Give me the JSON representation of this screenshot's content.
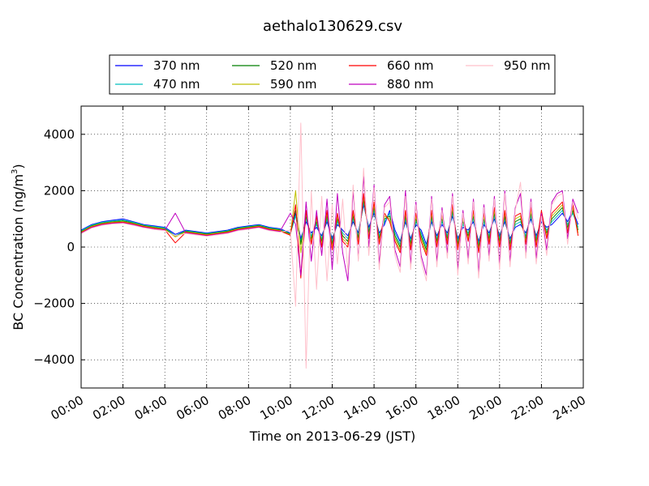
{
  "chart_data": {
    "type": "line",
    "title": "aethalo130629.csv",
    "xlabel": "Time on 2013-06-29 (JST)",
    "ylabel": "BC Concentration (ng/m",
    "ylabel_sup": "3",
    "ylabel_close": ")",
    "xlim": [
      "00:00",
      "24:00"
    ],
    "ylim": [
      -5000,
      5000
    ],
    "x_ticks": [
      "00:00",
      "02:00",
      "04:00",
      "06:00",
      "08:00",
      "10:00",
      "12:00",
      "14:00",
      "16:00",
      "18:00",
      "20:00",
      "22:00",
      "24:00"
    ],
    "y_ticks": [
      -4000,
      -2000,
      0,
      2000,
      4000
    ],
    "grid": true,
    "legend_position": "top",
    "x": [
      "00:00",
      "00:30",
      "01:00",
      "01:30",
      "02:00",
      "02:30",
      "03:00",
      "03:30",
      "04:00",
      "04:30",
      "05:00",
      "05:30",
      "06:00",
      "06:30",
      "07:00",
      "07:30",
      "08:00",
      "08:30",
      "09:00",
      "09:30",
      "10:00",
      "10:15",
      "10:30",
      "10:45",
      "11:00",
      "11:15",
      "11:30",
      "11:45",
      "12:00",
      "12:15",
      "12:30",
      "12:45",
      "13:00",
      "13:15",
      "13:30",
      "13:45",
      "14:00",
      "14:15",
      "14:30",
      "14:45",
      "15:00",
      "15:15",
      "15:30",
      "15:45",
      "16:00",
      "16:15",
      "16:30",
      "16:45",
      "17:00",
      "17:15",
      "17:30",
      "17:45",
      "18:00",
      "18:15",
      "18:30",
      "18:45",
      "19:00",
      "19:15",
      "19:30",
      "19:45",
      "20:00",
      "20:15",
      "20:30",
      "20:45",
      "21:00",
      "21:15",
      "21:30",
      "21:45",
      "22:00",
      "22:15",
      "22:30",
      "22:45",
      "23:00",
      "23:15",
      "23:30",
      "23:45"
    ],
    "series": [
      {
        "name": "370 nm",
        "color": "#0000ff",
        "values": [
          600,
          800,
          900,
          950,
          1000,
          900,
          800,
          750,
          700,
          450,
          600,
          550,
          500,
          550,
          600,
          700,
          750,
          800,
          700,
          650,
          500,
          1200,
          300,
          900,
          500,
          700,
          400,
          900,
          300,
          800,
          600,
          400,
          900,
          500,
          1500,
          700,
          1200,
          500,
          800,
          1300,
          600,
          200,
          900,
          300,
          800,
          600,
          100,
          900,
          400,
          800,
          500,
          1100,
          300,
          700,
          600,
          900,
          200,
          800,
          500,
          1000,
          400,
          900,
          300,
          700,
          800,
          500,
          1000,
          400,
          900,
          700,
          800,
          1000,
          1200,
          900,
          1300,
          800
        ]
      },
      {
        "name": "470 nm",
        "color": "#00bfbf",
        "values": [
          580,
          780,
          880,
          930,
          960,
          880,
          780,
          730,
          680,
          400,
          580,
          530,
          480,
          530,
          580,
          680,
          730,
          780,
          680,
          630,
          480,
          1100,
          200,
          1000,
          400,
          800,
          300,
          1000,
          200,
          900,
          500,
          300,
          1000,
          400,
          1600,
          600,
          1300,
          400,
          900,
          1200,
          500,
          100,
          1000,
          200,
          900,
          500,
          0,
          1000,
          300,
          900,
          400,
          1200,
          200,
          800,
          500,
          1000,
          100,
          900,
          400,
          1100,
          300,
          1000,
          200,
          800,
          900,
          400,
          1100,
          300,
          1000,
          600,
          900,
          1100,
          1300,
          800,
          1200,
          700
        ]
      },
      {
        "name": "520 nm",
        "color": "#007f00",
        "values": [
          550,
          750,
          850,
          900,
          930,
          850,
          760,
          700,
          650,
          380,
          560,
          510,
          460,
          510,
          560,
          660,
          710,
          760,
          660,
          610,
          460,
          1300,
          100,
          1100,
          300,
          900,
          200,
          1100,
          100,
          1000,
          400,
          200,
          1100,
          300,
          1700,
          500,
          1400,
          300,
          1000,
          1100,
          400,
          0,
          1100,
          100,
          1000,
          400,
          -100,
          1100,
          200,
          1000,
          300,
          1300,
          100,
          900,
          400,
          1100,
          0,
          1000,
          300,
          1200,
          200,
          1100,
          100,
          900,
          1000,
          300,
          1200,
          200,
          1100,
          500,
          1000,
          1200,
          1400,
          700,
          1300,
          600
        ]
      },
      {
        "name": "590 nm",
        "color": "#bfbf00",
        "values": [
          530,
          730,
          830,
          880,
          900,
          830,
          740,
          680,
          630,
          360,
          540,
          490,
          440,
          490,
          540,
          640,
          690,
          740,
          640,
          590,
          440,
          2000,
          -200,
          1200,
          200,
          1000,
          100,
          1200,
          0,
          1100,
          300,
          100,
          1200,
          200,
          1800,
          400,
          1500,
          200,
          1100,
          1000,
          300,
          -100,
          1200,
          0,
          1100,
          300,
          -200,
          1200,
          100,
          1100,
          200,
          1400,
          0,
          1000,
          300,
          1200,
          -100,
          1100,
          200,
          1300,
          100,
          1200,
          0,
          1000,
          1100,
          200,
          1300,
          100,
          1200,
          400,
          1100,
          1300,
          1500,
          600,
          1400,
          500
        ]
      },
      {
        "name": "660 nm",
        "color": "#ff0000",
        "values": [
          510,
          710,
          810,
          860,
          880,
          810,
          720,
          660,
          610,
          150,
          520,
          470,
          420,
          470,
          520,
          620,
          670,
          720,
          620,
          570,
          420,
          1500,
          -1100,
          1300,
          100,
          1100,
          0,
          1300,
          -100,
          1200,
          200,
          0,
          1300,
          100,
          1900,
          300,
          1600,
          100,
          1200,
          900,
          200,
          -200,
          1300,
          -100,
          1200,
          200,
          -300,
          1300,
          0,
          1200,
          100,
          1500,
          -100,
          1100,
          200,
          1300,
          -200,
          1200,
          100,
          1400,
          0,
          1300,
          -100,
          1100,
          1200,
          100,
          1400,
          0,
          1300,
          300,
          1200,
          1400,
          1600,
          500,
          1500,
          400
        ]
      },
      {
        "name": "880 nm",
        "color": "#bf00bf",
        "values": [
          490,
          690,
          790,
          840,
          860,
          790,
          700,
          640,
          600,
          1200,
          500,
          450,
          400,
          450,
          500,
          600,
          650,
          700,
          600,
          550,
          1200,
          800,
          -1000,
          1600,
          -500,
          1300,
          -300,
          1700,
          -800,
          1900,
          -200,
          -1200,
          2000,
          -400,
          2500,
          0,
          2200,
          -600,
          1500,
          1800,
          -100,
          -700,
          2000,
          -600,
          1600,
          -300,
          -1000,
          1800,
          -500,
          1400,
          -200,
          1900,
          -800,
          1300,
          -400,
          1700,
          -900,
          1500,
          -300,
          1800,
          -600,
          2000,
          -500,
          1400,
          1900,
          -200,
          1700,
          -400,
          1200,
          -100,
          1600,
          1900,
          2000,
          300,
          1700,
          1200
        ]
      },
      {
        "name": "950 nm",
        "color": "#ffc0cb",
        "values": [
          470,
          670,
          770,
          820,
          840,
          770,
          680,
          620,
          580,
          400,
          480,
          430,
          380,
          430,
          480,
          580,
          630,
          680,
          580,
          530,
          600,
          -2100,
          4400,
          -4300,
          2000,
          -1500,
          1800,
          -1200,
          1500,
          -600,
          1700,
          -900,
          2200,
          -500,
          2800,
          -300,
          2100,
          -800,
          1400,
          1600,
          -300,
          -900,
          1800,
          -800,
          1500,
          -500,
          -1200,
          1700,
          -700,
          1300,
          -400,
          1800,
          -1000,
          1200,
          -600,
          1600,
          -1100,
          1400,
          -500,
          1700,
          -800,
          1900,
          -700,
          1300,
          2300,
          -400,
          1600,
          -600,
          1100,
          -300,
          1500,
          1800,
          1900,
          100,
          1600,
          1000
        ]
      }
    ]
  }
}
